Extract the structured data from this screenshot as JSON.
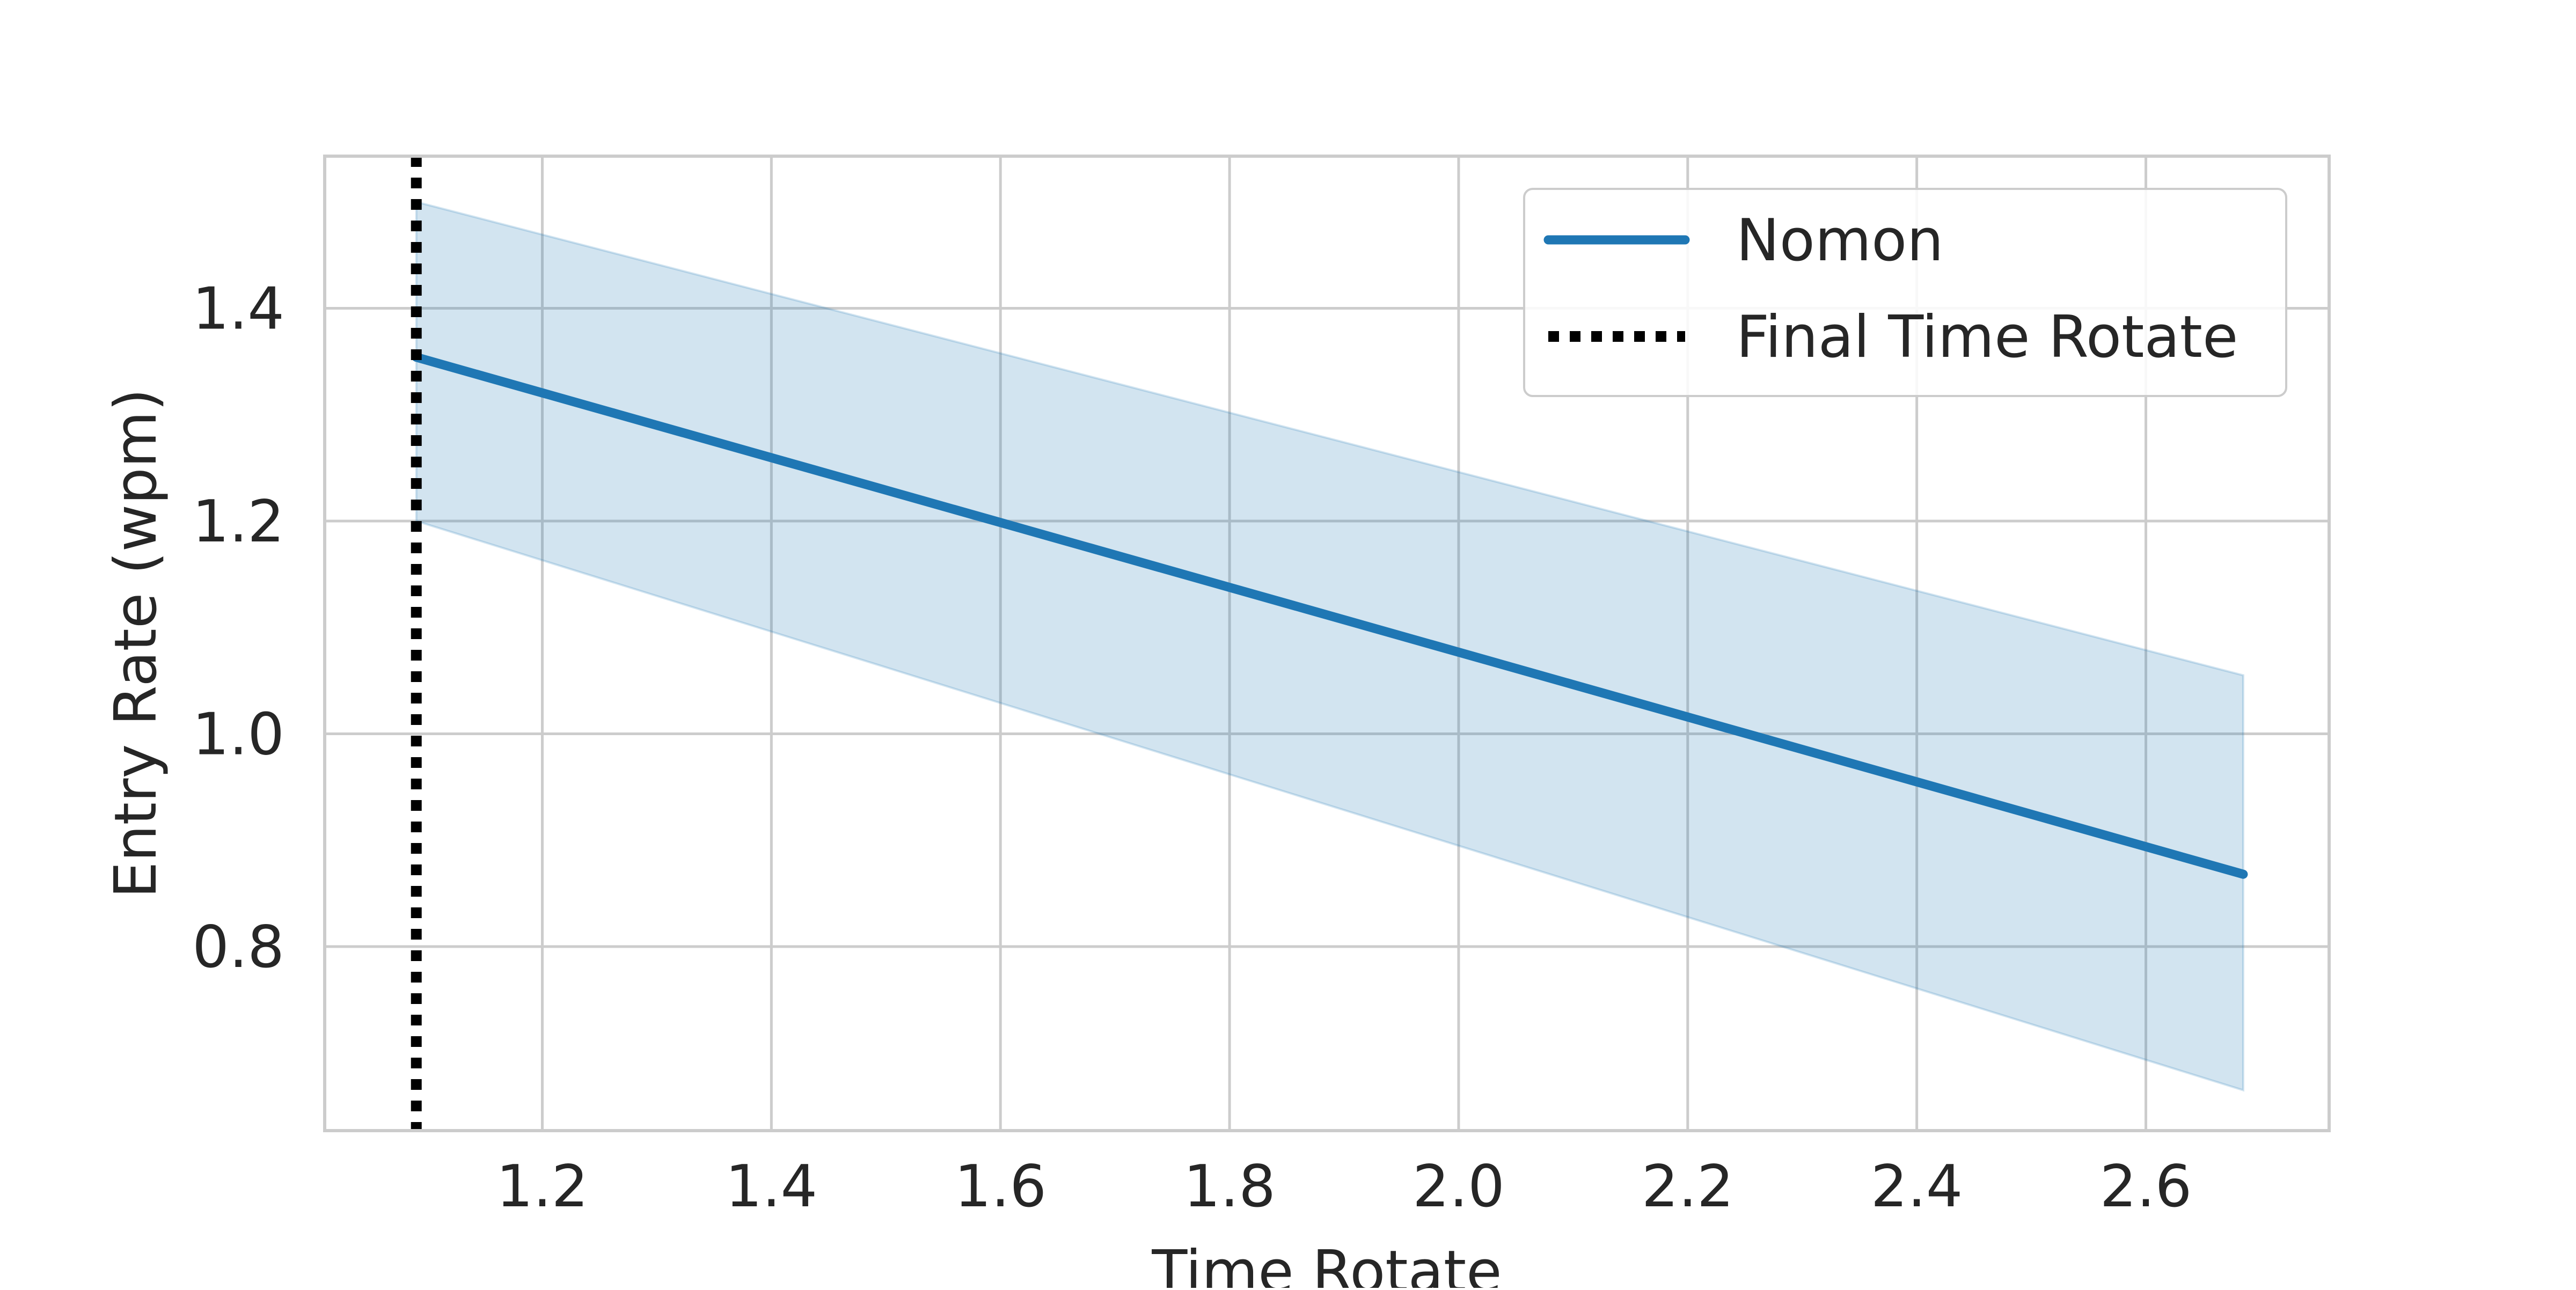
{
  "chart_data": {
    "type": "line",
    "title": "",
    "xlabel": "Time Rotate",
    "ylabel": "Entry Rate (wpm)",
    "xlim": [
      1.01,
      2.76
    ],
    "ylim": [
      0.627,
      1.543
    ],
    "xticks": [
      1.2,
      1.4,
      1.6,
      1.8,
      2.0,
      2.2,
      2.4,
      2.6
    ],
    "xtick_labels": [
      "1.2",
      "1.4",
      "1.6",
      "1.8",
      "2.0",
      "2.2",
      "2.4",
      "2.6"
    ],
    "yticks": [
      0.8,
      1.0,
      1.2,
      1.4
    ],
    "ytick_labels": [
      "0.8",
      "1.0",
      "1.2",
      "1.4"
    ],
    "grid": true,
    "legend_position": "top-right",
    "series": [
      {
        "name": "Nomon",
        "color": "#1f77b4",
        "x": [
          1.09,
          2.685
        ],
        "y": [
          1.354,
          0.868
        ],
        "ci_lower": [
          1.2,
          0.665
        ],
        "ci_upper": [
          1.5,
          1.055
        ]
      }
    ],
    "vlines": [
      {
        "name": "Final Time Rotate",
        "x": 1.09,
        "color": "#000000",
        "style": "dotted"
      }
    ]
  }
}
